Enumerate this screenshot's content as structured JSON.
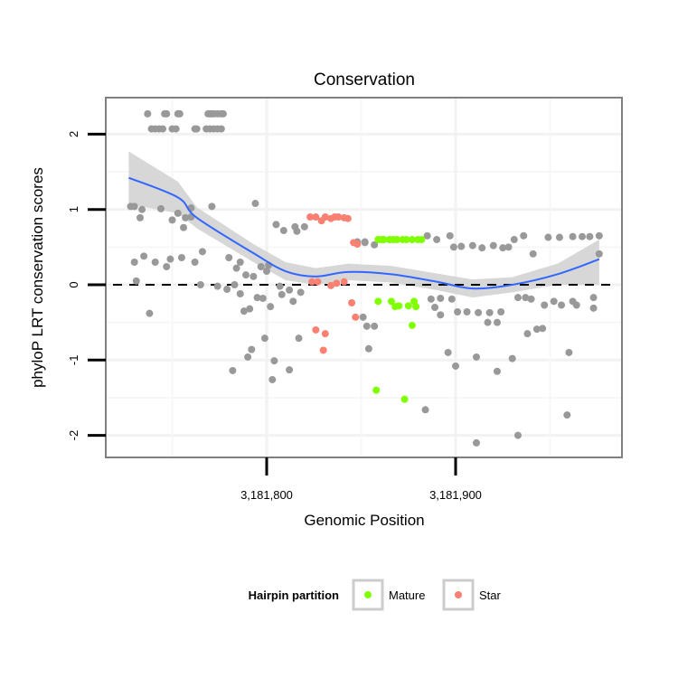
{
  "chart_data": {
    "type": "scatter",
    "title": "Conservation",
    "xlabel": "Genomic Position",
    "ylabel": "phyloP LRT conservation scores",
    "xlim": [
      3181713,
      3181985
    ],
    "ylim": [
      -2.3,
      2.45
    ],
    "x_ticks": [
      {
        "value": 3181800,
        "label": "3,181,800"
      },
      {
        "value": 3181900,
        "label": "3,181,900"
      }
    ],
    "y_ticks": [
      {
        "value": 2,
        "label": "2"
      },
      {
        "value": 1,
        "label": "1"
      },
      {
        "value": 0,
        "label": "0"
      },
      {
        "value": -1,
        "label": "-1"
      },
      {
        "value": -2,
        "label": "-2"
      }
    ],
    "reference_line": {
      "y": 0,
      "style": "dashed",
      "color": "#000000"
    },
    "grid": true,
    "colors": {
      "other": "#999999",
      "Mature": "#7FFF00",
      "Star": "#FA8072",
      "smooth": "#3366FF",
      "band": "#D3D3D3"
    },
    "legend": {
      "title": "Hairpin partition",
      "placement": "bottom",
      "entries": [
        "Mature",
        "Star"
      ]
    },
    "series": [
      {
        "name": "other",
        "points": [
          [
            3181737,
            2.27
          ],
          [
            3181746,
            2.27
          ],
          [
            3181747,
            2.27
          ],
          [
            3181753,
            2.27
          ],
          [
            3181754,
            2.27
          ],
          [
            3181769,
            2.27
          ],
          [
            3181770,
            2.27
          ],
          [
            3181771,
            2.27
          ],
          [
            3181772,
            2.27
          ],
          [
            3181774,
            2.27
          ],
          [
            3181776,
            2.27
          ],
          [
            3181777,
            2.27
          ],
          [
            3181739,
            2.07
          ],
          [
            3181741,
            2.07
          ],
          [
            3181743,
            2.07
          ],
          [
            3181745,
            2.07
          ],
          [
            3181750,
            2.07
          ],
          [
            3181752,
            2.07
          ],
          [
            3181762,
            2.07
          ],
          [
            3181763,
            2.07
          ],
          [
            3181768,
            2.07
          ],
          [
            3181770,
            2.07
          ],
          [
            3181772,
            2.07
          ],
          [
            3181774,
            2.07
          ],
          [
            3181776,
            2.07
          ],
          [
            3181728,
            1.04
          ],
          [
            3181730,
            1.04
          ],
          [
            3181734,
            1.0
          ],
          [
            3181733,
            0.89
          ],
          [
            3181744,
            1.01
          ],
          [
            3181750,
            0.86
          ],
          [
            3181753,
            0.95
          ],
          [
            3181756,
            0.76
          ],
          [
            3181757,
            0.89
          ],
          [
            3181760,
            1.02
          ],
          [
            3181760,
            0.9
          ],
          [
            3181771,
            1.04
          ],
          [
            3181794,
            1.08
          ],
          [
            3181805,
            0.8
          ],
          [
            3181809,
            0.72
          ],
          [
            3181815,
            0.77
          ],
          [
            3181820,
            0.77
          ],
          [
            3181816,
            0.71
          ],
          [
            3181730,
            0.3
          ],
          [
            3181735,
            0.38
          ],
          [
            3181741,
            0.3
          ],
          [
            3181747,
            0.24
          ],
          [
            3181749,
            0.34
          ],
          [
            3181755,
            0.36
          ],
          [
            3181762,
            0.3
          ],
          [
            3181766,
            0.44
          ],
          [
            3181780,
            0.36
          ],
          [
            3181786,
            0.3
          ],
          [
            3181784,
            0.22
          ],
          [
            3181789,
            0.13
          ],
          [
            3181793,
            0.11
          ],
          [
            3181797,
            0.24
          ],
          [
            3181801,
            0.26
          ],
          [
            3181800,
            0.18
          ],
          [
            3181731,
            0.05
          ],
          [
            3181738,
            -0.38
          ],
          [
            3181765,
            0.0
          ],
          [
            3181774,
            -0.02
          ],
          [
            3181779,
            -0.06
          ],
          [
            3181783,
            0.0
          ],
          [
            3181786,
            -0.12
          ],
          [
            3181788,
            -0.35
          ],
          [
            3181791,
            -0.32
          ],
          [
            3181795,
            -0.17
          ],
          [
            3181798,
            -0.18
          ],
          [
            3181802,
            -0.29
          ],
          [
            3181807,
            -0.02
          ],
          [
            3181808,
            -0.13
          ],
          [
            3181812,
            -0.07
          ],
          [
            3181814,
            -0.22
          ],
          [
            3181818,
            -0.1
          ],
          [
            3181799,
            -0.71
          ],
          [
            3181792,
            -0.86
          ],
          [
            3181790,
            -0.96
          ],
          [
            3181804,
            -1.01
          ],
          [
            3181782,
            -1.14
          ],
          [
            3181803,
            -1.26
          ],
          [
            3181812,
            -1.13
          ],
          [
            3181817,
            -0.71
          ],
          [
            3181848,
            0.57
          ],
          [
            3181852,
            0.57
          ],
          [
            3181852,
            0.56
          ],
          [
            3181857,
            0.53
          ],
          [
            3181885,
            0.65
          ],
          [
            3181890,
            0.6
          ],
          [
            3181897,
            0.65
          ],
          [
            3181899,
            0.5
          ],
          [
            3181903,
            0.51
          ],
          [
            3181909,
            0.52
          ],
          [
            3181914,
            0.49
          ],
          [
            3181920,
            0.52
          ],
          [
            3181925,
            0.49
          ],
          [
            3181928,
            0.5
          ],
          [
            3181931,
            0.6
          ],
          [
            3181936,
            0.65
          ],
          [
            3181941,
            0.41
          ],
          [
            3181949,
            0.63
          ],
          [
            3181955,
            0.63
          ],
          [
            3181962,
            0.64
          ],
          [
            3181967,
            0.64
          ],
          [
            3181971,
            0.64
          ],
          [
            3181976,
            0.65
          ],
          [
            3181976,
            0.41
          ],
          [
            3181887,
            -0.19
          ],
          [
            3181892,
            -0.18
          ],
          [
            3181898,
            -0.19
          ],
          [
            3181889,
            -0.3
          ],
          [
            3181892,
            -0.4
          ],
          [
            3181901,
            -0.36
          ],
          [
            3181906,
            -0.36
          ],
          [
            3181912,
            -0.37
          ],
          [
            3181918,
            -0.37
          ],
          [
            3181924,
            -0.36
          ],
          [
            3181933,
            -0.17
          ],
          [
            3181937,
            -0.17
          ],
          [
            3181940,
            -0.19
          ],
          [
            3181947,
            -0.27
          ],
          [
            3181952,
            -0.22
          ],
          [
            3181956,
            -0.27
          ],
          [
            3181962,
            -0.22
          ],
          [
            3181964,
            -0.27
          ],
          [
            3181973,
            -0.17
          ],
          [
            3181973,
            -0.31
          ],
          [
            3181917,
            -0.5
          ],
          [
            3181922,
            -0.5
          ],
          [
            3181938,
            -0.65
          ],
          [
            3181943,
            -0.59
          ],
          [
            3181946,
            -0.58
          ],
          [
            3181851,
            -0.43
          ],
          [
            3181853,
            -0.55
          ],
          [
            3181857,
            -0.55
          ],
          [
            3181854,
            -0.85
          ],
          [
            3181896,
            -0.9
          ],
          [
            3181900,
            -1.08
          ],
          [
            3181911,
            -0.96
          ],
          [
            3181922,
            -1.15
          ],
          [
            3181930,
            -0.98
          ],
          [
            3181960,
            -0.9
          ],
          [
            3181884,
            -1.66
          ],
          [
            3181911,
            -2.1
          ],
          [
            3181933,
            -2.0
          ],
          [
            3181959,
            -1.73
          ]
        ]
      },
      {
        "name": "Star",
        "points": [
          [
            3181823,
            0.9
          ],
          [
            3181826,
            0.9
          ],
          [
            3181829,
            0.85
          ],
          [
            3181831,
            0.9
          ],
          [
            3181834,
            0.88
          ],
          [
            3181836,
            0.9
          ],
          [
            3181838,
            0.9
          ],
          [
            3181841,
            0.89
          ],
          [
            3181843,
            0.88
          ],
          [
            3181846,
            0.56
          ],
          [
            3181848,
            0.54
          ],
          [
            3181824,
            0.04
          ],
          [
            3181827,
            0.04
          ],
          [
            3181834,
            -0.01
          ],
          [
            3181837,
            0.02
          ],
          [
            3181841,
            0.04
          ],
          [
            3181845,
            -0.24
          ],
          [
            3181847,
            -0.43
          ],
          [
            3181826,
            -0.6
          ],
          [
            3181831,
            -0.65
          ],
          [
            3181830,
            -0.87
          ]
        ]
      },
      {
        "name": "Mature",
        "points": [
          [
            3181859,
            0.6
          ],
          [
            3181861,
            0.6
          ],
          [
            3181862,
            0.6
          ],
          [
            3181865,
            0.6
          ],
          [
            3181867,
            0.6
          ],
          [
            3181869,
            0.6
          ],
          [
            3181872,
            0.6
          ],
          [
            3181874,
            0.6
          ],
          [
            3181877,
            0.6
          ],
          [
            3181880,
            0.6
          ],
          [
            3181882,
            0.6
          ],
          [
            3181859,
            -0.22
          ],
          [
            3181866,
            -0.22
          ],
          [
            3181868,
            -0.29
          ],
          [
            3181870,
            -0.28
          ],
          [
            3181875,
            -0.28
          ],
          [
            3181878,
            -0.22
          ],
          [
            3181879,
            -0.29
          ],
          [
            3181877,
            -0.54
          ],
          [
            3181858,
            -1.4
          ],
          [
            3181873,
            -1.52
          ]
        ]
      }
    ],
    "smooth": [
      {
        "x": 3181727,
        "y": 1.42,
        "lo": 1.07,
        "hi": 1.77
      },
      {
        "x": 3181753,
        "y": 1.16,
        "lo": 0.95,
        "hi": 1.37
      },
      {
        "x": 3181763,
        "y": 0.89,
        "lo": 0.75,
        "hi": 1.03
      },
      {
        "x": 3181793,
        "y": 0.42,
        "lo": 0.3,
        "hi": 0.54
      },
      {
        "x": 3181810,
        "y": 0.18,
        "lo": 0.06,
        "hi": 0.3
      },
      {
        "x": 3181826,
        "y": 0.11,
        "lo": 0.0,
        "hi": 0.22
      },
      {
        "x": 3181843,
        "y": 0.17,
        "lo": 0.06,
        "hi": 0.28
      },
      {
        "x": 3181866,
        "y": 0.14,
        "lo": 0.03,
        "hi": 0.25
      },
      {
        "x": 3181890,
        "y": 0.04,
        "lo": -0.07,
        "hi": 0.15
      },
      {
        "x": 3181909,
        "y": -0.05,
        "lo": -0.17,
        "hi": 0.07
      },
      {
        "x": 3181930,
        "y": 0.0,
        "lo": -0.1,
        "hi": 0.1
      },
      {
        "x": 3181954,
        "y": 0.14,
        "lo": 0.0,
        "hi": 0.28
      },
      {
        "x": 3181976,
        "y": 0.34,
        "lo": 0.0,
        "hi": 0.6
      }
    ]
  }
}
